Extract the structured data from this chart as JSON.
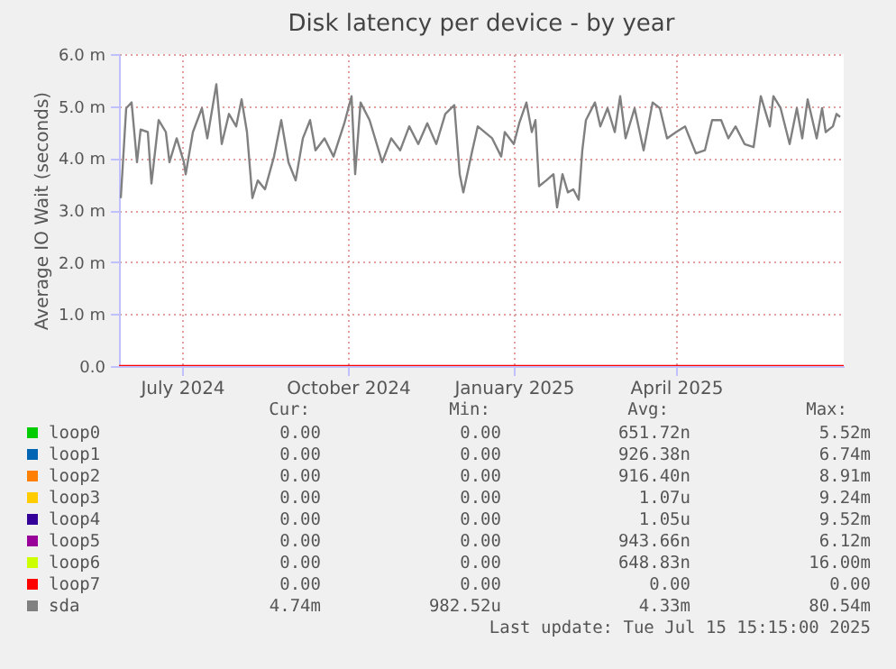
{
  "chart_data": {
    "type": "line",
    "title": "Disk latency per device - by year",
    "ylabel": "Average IO Wait (seconds)",
    "xlim": [
      "2024-05-27",
      "2025-07-03"
    ],
    "xticks": [
      {
        "value": "2024-07-01",
        "label": "July 2024"
      },
      {
        "value": "2024-10-01",
        "label": "October 2024"
      },
      {
        "value": "2025-01-01",
        "label": "January 2025"
      },
      {
        "value": "2025-04-01",
        "label": "April 2025"
      }
    ],
    "ylim": [
      0,
      6
    ],
    "yticks": [
      {
        "value": 0,
        "label": "0.0"
      },
      {
        "value": 1,
        "label": "1.0 m"
      },
      {
        "value": 2,
        "label": "2.0 m"
      },
      {
        "value": 3,
        "label": "3.0 m"
      },
      {
        "value": 4,
        "label": "4.0 m"
      },
      {
        "value": 5,
        "label": "5.0 m"
      },
      {
        "value": 6,
        "label": "6.0 m"
      }
    ],
    "grid": true,
    "legend": "bottom",
    "marker": "none",
    "line_style": "solid",
    "series": [
      {
        "name": "loop0",
        "color": "#00cc00"
      },
      {
        "name": "loop1",
        "color": "#0066b3"
      },
      {
        "name": "loop2",
        "color": "#ff8000"
      },
      {
        "name": "loop3",
        "color": "#ffcc00"
      },
      {
        "name": "loop4",
        "color": "#330099"
      },
      {
        "name": "loop5",
        "color": "#990099"
      },
      {
        "name": "loop6",
        "color": "#ccff00"
      },
      {
        "name": "loop7",
        "color": "#ff0000",
        "x": [
          "2024-05-27",
          "2025-07-03"
        ],
        "values": [
          0,
          0
        ]
      },
      {
        "name": "sda",
        "color": "#808080",
        "x": [
          "2024-05-28",
          "2024-05-31",
          "2024-06-03",
          "2024-06-06",
          "2024-06-08",
          "2024-06-12",
          "2024-06-14",
          "2024-06-18",
          "2024-06-22",
          "2024-06-24",
          "2024-06-28",
          "2024-07-02",
          "2024-07-03",
          "2024-07-07",
          "2024-07-12",
          "2024-07-15",
          "2024-07-20",
          "2024-07-23",
          "2024-07-27",
          "2024-07-31",
          "2024-08-03",
          "2024-08-06",
          "2024-08-09",
          "2024-08-12",
          "2024-08-16",
          "2024-08-21",
          "2024-08-25",
          "2024-08-29",
          "2024-09-02",
          "2024-09-06",
          "2024-09-10",
          "2024-09-13",
          "2024-09-18",
          "2024-09-23",
          "2024-09-29",
          "2024-10-03",
          "2024-10-05",
          "2024-10-08",
          "2024-10-13",
          "2024-10-20",
          "2024-10-25",
          "2024-10-30",
          "2024-11-04",
          "2024-11-09",
          "2024-11-14",
          "2024-11-19",
          "2024-11-24",
          "2024-11-29",
          "2024-12-02",
          "2024-12-04",
          "2024-12-09",
          "2024-12-12",
          "2024-12-20",
          "2024-12-25",
          "2024-12-27",
          "2025-01-01",
          "2025-01-04",
          "2025-01-08",
          "2025-01-11",
          "2025-01-13",
          "2025-01-15",
          "2025-01-19",
          "2025-01-23",
          "2025-01-25",
          "2025-01-28",
          "2025-01-31",
          "2025-02-03",
          "2025-02-06",
          "2025-02-08",
          "2025-02-10",
          "2025-02-15",
          "2025-02-18",
          "2025-02-22",
          "2025-02-26",
          "2025-03-01",
          "2025-03-04",
          "2025-03-09",
          "2025-03-14",
          "2025-03-19",
          "2025-03-23",
          "2025-03-27",
          "2025-04-01",
          "2025-04-06",
          "2025-04-12",
          "2025-04-17",
          "2025-04-21",
          "2025-04-26",
          "2025-04-30",
          "2025-05-04",
          "2025-05-09",
          "2025-05-14",
          "2025-05-18",
          "2025-05-23",
          "2025-05-25",
          "2025-05-29",
          "2025-06-03",
          "2025-06-07",
          "2025-06-10",
          "2025-06-13",
          "2025-06-18",
          "2025-06-21",
          "2025-06-23",
          "2025-06-27",
          "2025-06-29",
          "2025-07-01"
        ],
        "values": [
          3.23,
          4.96,
          5.07,
          3.92,
          4.55,
          4.5,
          3.51,
          4.73,
          4.5,
          3.92,
          4.38,
          3.92,
          3.69,
          4.5,
          4.96,
          4.38,
          5.42,
          4.27,
          4.85,
          4.61,
          5.13,
          4.5,
          3.23,
          3.57,
          3.4,
          4.03,
          4.73,
          3.92,
          3.57,
          4.38,
          4.73,
          4.15,
          4.38,
          4.03,
          4.67,
          5.19,
          3.69,
          5.07,
          4.73,
          3.92,
          4.38,
          4.15,
          4.61,
          4.27,
          4.67,
          4.27,
          4.85,
          5.02,
          3.69,
          3.34,
          4.15,
          4.61,
          4.38,
          4.03,
          4.5,
          4.27,
          4.67,
          5.07,
          4.5,
          4.73,
          3.46,
          3.57,
          3.69,
          3.05,
          3.69,
          3.34,
          3.4,
          3.2,
          4.15,
          4.73,
          5.07,
          4.61,
          4.96,
          4.5,
          5.19,
          4.38,
          4.96,
          4.15,
          5.07,
          4.96,
          4.38,
          4.5,
          4.61,
          4.09,
          4.15,
          4.73,
          4.73,
          4.38,
          4.61,
          4.27,
          4.21,
          5.19,
          4.61,
          5.19,
          4.96,
          4.27,
          4.96,
          4.38,
          5.13,
          4.38,
          4.96,
          4.5,
          4.61,
          4.85,
          4.79
        ]
      }
    ],
    "annotations": [
      "Cur:",
      "Min:",
      "Avg:",
      "Max:",
      "0.00",
      "0.00",
      "651.72n",
      "5.52m",
      "0.00",
      "0.00",
      "926.38n",
      "6.74m",
      "0.00",
      "0.00",
      "916.40n",
      "8.91m",
      "0.00",
      "0.00",
      "1.07u",
      "9.24m",
      "0.00",
      "0.00",
      "1.05u",
      "9.52m",
      "0.00",
      "0.00",
      "943.66n",
      "6.12m",
      "0.00",
      "0.00",
      "648.83n",
      "16.00m",
      "0.00",
      "0.00",
      "0.00",
      "0.00",
      "4.74m",
      "982.52u",
      "4.33m",
      "80.54m",
      "Last update: Tue Jul 15 15:15:00 2025"
    ]
  }
}
